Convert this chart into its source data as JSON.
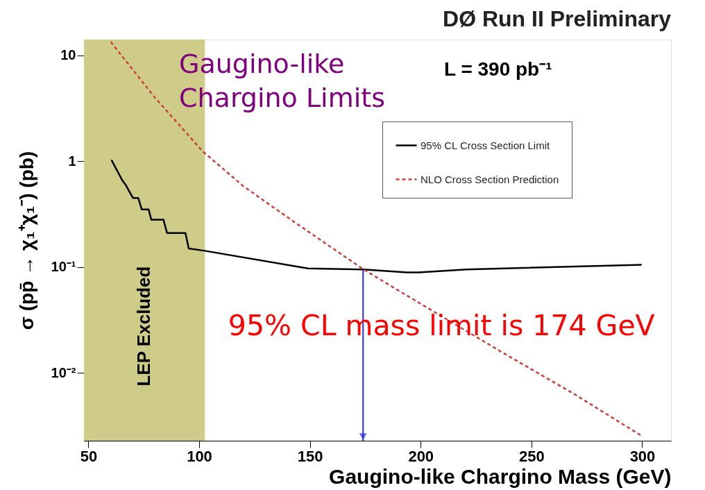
{
  "chart_data": {
    "type": "line",
    "title": "DØ Run II Preliminary",
    "xlabel": "Gaugino-like Chargino Mass (GeV)",
    "ylabel": "σ (pp̄ → χ₁⁺χ₁⁻) (pb)",
    "log": "y",
    "xlim": [
      48,
      313
    ],
    "ylim": [
      0.00229,
      14.1
    ],
    "xticks": [
      50,
      100,
      150,
      200,
      250,
      300
    ],
    "yticks": [
      {
        "value": 0.01,
        "label": "10⁻²"
      },
      {
        "value": 0.1,
        "label": "10⁻¹"
      },
      {
        "value": 1,
        "label": "1"
      },
      {
        "value": 10,
        "label": "10"
      }
    ],
    "series": [
      {
        "name": "95% CL Cross Section Limit",
        "color": "#000000",
        "line_style": "solid",
        "x": [
          60.4,
          65.3,
          66.8,
          70.1,
          72.5,
          74.1,
          77.2,
          78.4,
          83.9,
          85.5,
          93.8,
          95.3,
          102.1,
          149.1,
          174.2,
          193.8,
          199.1,
          220.6,
          299.8
        ],
        "values": [
          1.03,
          0.66,
          0.6,
          0.45,
          0.45,
          0.35,
          0.35,
          0.28,
          0.28,
          0.21,
          0.21,
          0.15,
          0.143,
          0.097,
          0.095,
          0.089,
          0.089,
          0.095,
          0.105
        ]
      },
      {
        "name": "NLO Cross Section Prediction",
        "color": "#c8413c",
        "line_style": "dashed",
        "x": [
          60.1,
          80,
          101.6,
          120,
          141.5,
          174.2,
          200,
          236.7,
          270,
          299.8
        ],
        "values": [
          13.4,
          4.0,
          1.24,
          0.58,
          0.28,
          0.095,
          0.045,
          0.0157,
          0.0062,
          0.00254
        ]
      }
    ],
    "bands": [
      {
        "axis": "x",
        "from": 48,
        "to": 102.6,
        "label": "LEP Excluded",
        "color": "#cfcb88"
      }
    ],
    "annotations": [
      "Gaugino-like\nChargino Limits",
      "L = 390 pb⁻¹",
      {
        "text": "95% CL mass limit is 174 GeV",
        "x": 174,
        "y": 0.095
      }
    ],
    "legend": "top right",
    "grid": false,
    "marker": "none"
  }
}
